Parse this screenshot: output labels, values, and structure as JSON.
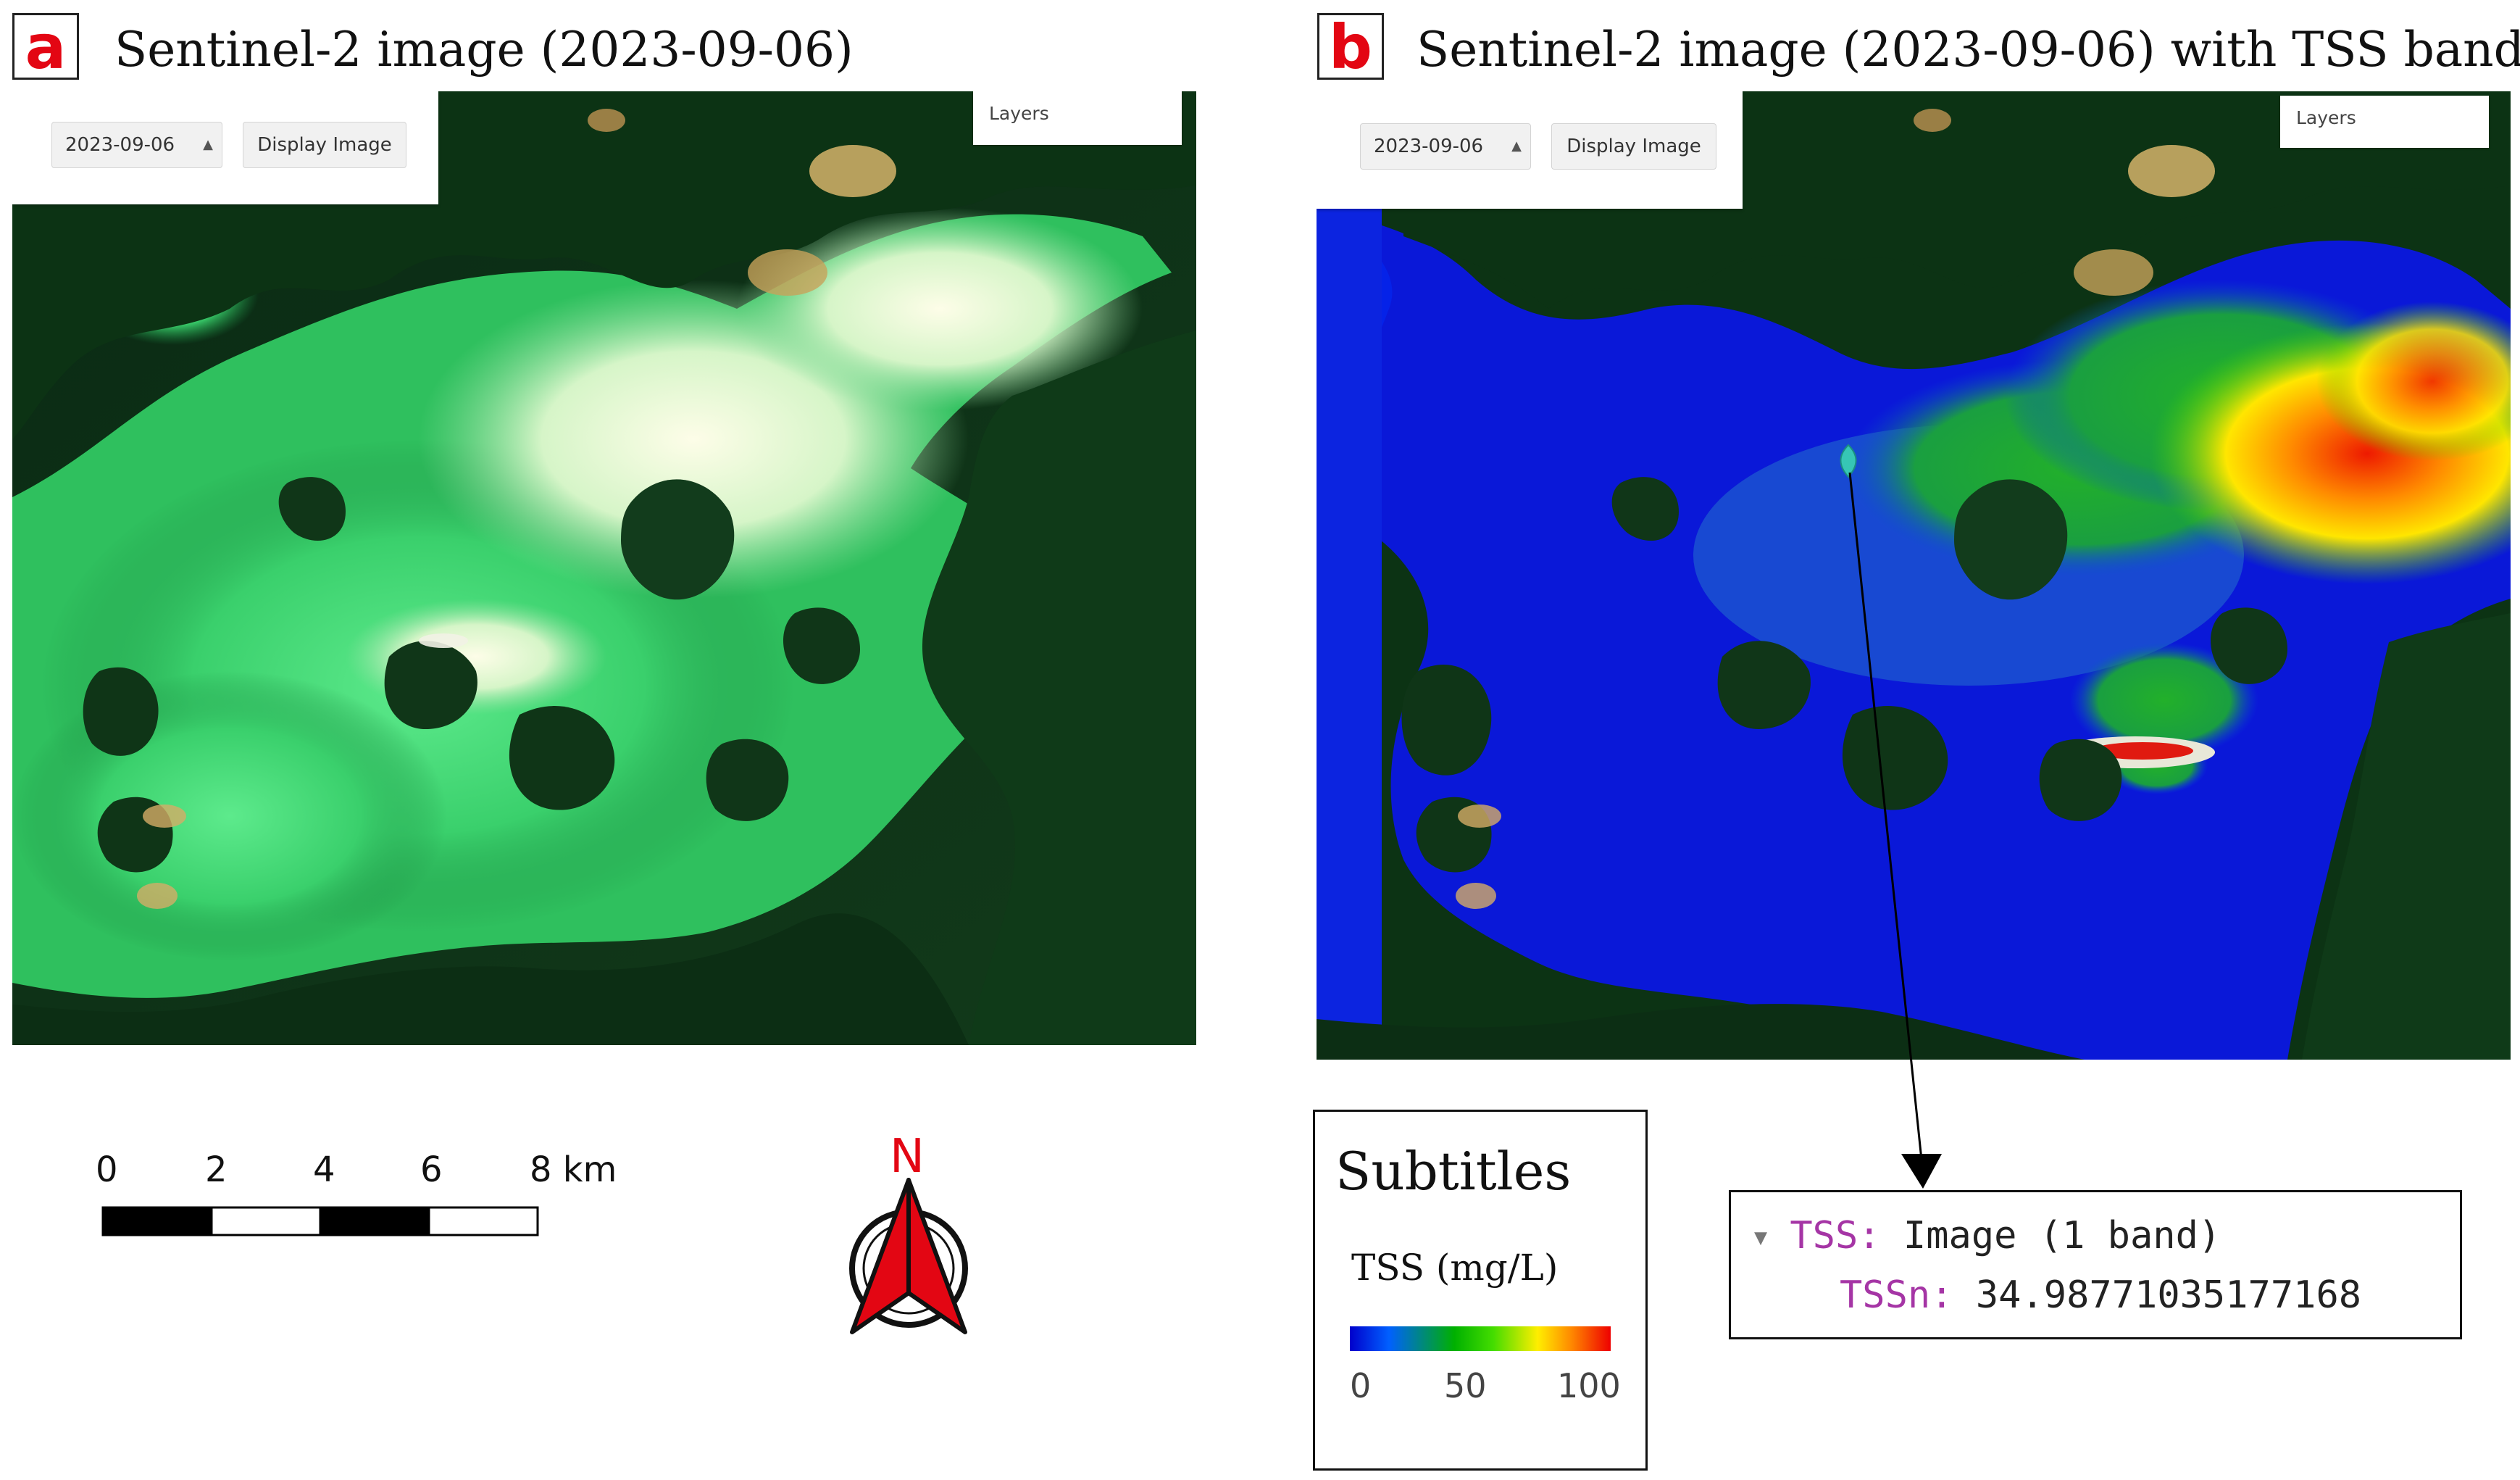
{
  "panel_a": {
    "letter": "a",
    "title": "Sentinel-2 image (2023-09-06)",
    "date_value": "2023-09-06",
    "display_button": "Display Image",
    "layers_label": "Layers"
  },
  "panel_b": {
    "letter": "b",
    "title": "Sentinel-2 image (2023-09-06) with TSS band",
    "date_value": "2023-09-06",
    "display_button": "Display Image",
    "layers_label": "Layers"
  },
  "scale_bar": {
    "ticks": [
      "0",
      "2",
      "4",
      "6",
      "8 km"
    ]
  },
  "north_arrow": {
    "label": "N"
  },
  "legend": {
    "title": "Subtitles",
    "variable": "TSS (mg/L)",
    "ticks": [
      "0",
      "50",
      "100"
    ],
    "colors": [
      "#0000cc",
      "#0060ff",
      "#00b000",
      "#44dd00",
      "#ffee00",
      "#ff8800",
      "#ee0000"
    ]
  },
  "inspector": {
    "layer_key": "TSS:",
    "layer_value": "Image (1 band)",
    "band_key": "TSSn:",
    "band_value": "34.98771035177168"
  },
  "colors": {
    "accent_red": "#e30613",
    "pin_color": "#36c6b5"
  }
}
